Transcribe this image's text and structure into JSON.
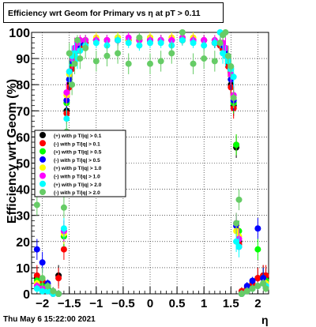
{
  "title": "Efficiency wrt Geom for Primary vs   η at pT > 0.11",
  "timestamp": "Thu May  6 15:22:00 2021",
  "colors": {
    "plus_pt01": "#000000",
    "minus_pt01": "#ff0000",
    "plus_pt05": "#00ff00",
    "minus_pt05": "#0000ff",
    "plus_pt10": "#ffff00",
    "minus_pt10": "#ff00ff",
    "plus_pt20": "#00ffff",
    "minus_pt20": "#66cc66"
  },
  "chart_data": {
    "type": "scatter",
    "title": "Efficiency wrt Geom for Primary vs   η at pT > 0.11",
    "xlabel": "η",
    "ylabel": "Efficiency wrt Geom (%)",
    "xlim": [
      -2.2,
      2.2
    ],
    "ylim": [
      0,
      100
    ],
    "xticks": [
      -2,
      -1.5,
      -1,
      -0.5,
      0,
      0.5,
      1,
      1.5,
      2
    ],
    "xtick_labels": [
      "−2",
      "−1.5",
      "−1",
      "−0.5",
      "0",
      "0.5",
      "1",
      "1.5",
      "2"
    ],
    "yticks": [
      0,
      10,
      20,
      30,
      40,
      50,
      60,
      70,
      80,
      90,
      100
    ],
    "grid": true,
    "legend_position": "left-middle",
    "x": [
      -2.1,
      -2.0,
      -1.9,
      -1.8,
      -1.7,
      -1.6,
      -1.55,
      -1.5,
      -1.45,
      -1.4,
      -1.35,
      -1.3,
      -1.2,
      -1.0,
      -0.8,
      -0.6,
      -0.4,
      -0.2,
      0.0,
      0.2,
      0.4,
      0.6,
      0.8,
      1.0,
      1.2,
      1.3,
      1.35,
      1.4,
      1.45,
      1.5,
      1.55,
      1.6,
      1.65,
      1.7,
      1.8,
      1.9,
      2.0,
      2.1,
      2.15
    ],
    "series": [
      {
        "name": "(+) with p T/|q| > 0.1",
        "color": "#000000",
        "values": [
          6,
          4,
          2,
          1,
          7,
          22,
          70,
          80,
          87,
          92,
          94,
          95,
          96,
          97,
          97,
          97,
          97,
          97,
          97,
          97,
          97,
          97,
          97,
          97,
          96,
          95,
          94,
          92,
          88,
          80,
          72,
          56,
          20,
          1,
          2,
          3,
          6,
          7,
          6
        ]
      },
      {
        "name": "(-) with p T/|q| > 0.1",
        "color": "#ff0000",
        "values": [
          7,
          5,
          3,
          1,
          6,
          17,
          69,
          79,
          86,
          91,
          93,
          95,
          96,
          97,
          97,
          97,
          97,
          97,
          97,
          97,
          97,
          97,
          97,
          97,
          96,
          95,
          94,
          92,
          87,
          79,
          71,
          57,
          19,
          1,
          2,
          4,
          6,
          7,
          7
        ]
      },
      {
        "name": "(+) with p T/|q| > 0.5",
        "color": "#00ff00",
        "values": [
          5,
          3,
          2,
          1,
          0,
          22,
          73,
          82,
          88,
          93,
          95,
          96,
          97,
          97,
          97,
          98,
          97,
          97,
          98,
          97,
          97,
          98,
          97,
          97,
          96,
          96,
          95,
          93,
          89,
          82,
          73,
          57,
          24,
          0,
          1,
          2,
          17,
          6,
          5
        ]
      },
      {
        "name": "(-) with p T/|q| > 0.5",
        "color": "#0000ff",
        "values": [
          17,
          12,
          4,
          1,
          0,
          24,
          74,
          82,
          89,
          93,
          95,
          96,
          97,
          97,
          97,
          97,
          97,
          97,
          97,
          97,
          97,
          97,
          97,
          97,
          96,
          96,
          95,
          93,
          89,
          82,
          74,
          26,
          18,
          0,
          3,
          5,
          25,
          6,
          4
        ]
      },
      {
        "name": "(+) with p T/|q| > 1.0",
        "color": "#ffff00",
        "values": [
          4,
          2,
          1,
          0,
          0,
          23,
          76,
          84,
          90,
          94,
          96,
          97,
          97,
          98,
          97,
          98,
          97,
          97,
          98,
          97,
          98,
          97,
          98,
          97,
          97,
          96,
          96,
          94,
          90,
          84,
          75,
          24,
          22,
          0,
          1,
          2,
          3,
          4,
          4
        ]
      },
      {
        "name": "(-) with p T/|q| > 1.0",
        "color": "#ff00ff",
        "values": [
          3,
          2,
          1,
          0,
          0,
          24,
          77,
          85,
          90,
          94,
          96,
          97,
          97,
          97,
          97,
          97,
          98,
          97,
          97,
          97,
          97,
          98,
          97,
          97,
          97,
          96,
          96,
          94,
          90,
          84,
          76,
          27,
          21,
          0,
          1,
          2,
          3,
          4,
          3
        ]
      },
      {
        "name": "(+) with p T/|q| > 2.0",
        "color": "#00ffff",
        "values": [
          2,
          1,
          1,
          0,
          0,
          25,
          67,
          85,
          91,
          92,
          90,
          93,
          95,
          96,
          95,
          97,
          96,
          95,
          96,
          96,
          95,
          97,
          96,
          95,
          96,
          100,
          92,
          91,
          89,
          86,
          83,
          20,
          18,
          0,
          1,
          2,
          3,
          4,
          3
        ]
      },
      {
        "name": "(-) with p T/|q| > 2.0",
        "color": "#66cc66",
        "values": [
          34,
          6,
          3,
          1,
          0,
          33,
          62,
          92,
          80,
          88,
          97,
          90,
          94,
          89,
          91,
          92,
          88,
          98,
          88,
          89,
          92,
          100,
          88,
          90,
          89,
          96,
          99,
          100,
          91,
          87,
          75,
          27,
          36,
          0,
          1,
          2,
          3,
          4,
          2
        ]
      }
    ]
  }
}
